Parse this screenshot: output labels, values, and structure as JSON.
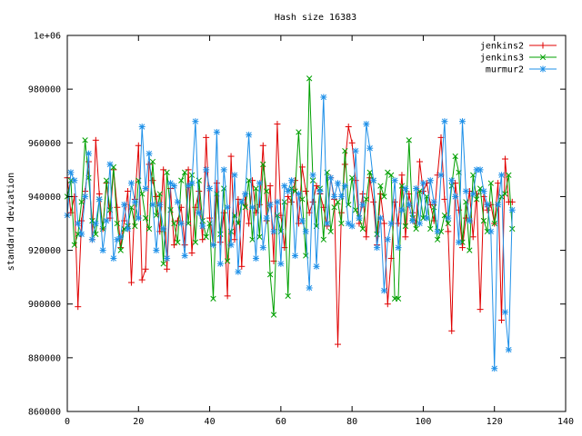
{
  "chart_data": {
    "type": "line",
    "title": "Hash size 16383",
    "xlabel": "",
    "ylabel": "standard deviation",
    "xlim": [
      0,
      140
    ],
    "ylim": [
      860000,
      1000000
    ],
    "x_ticks": [
      0,
      20,
      40,
      60,
      80,
      100,
      120,
      140
    ],
    "y_ticks": [
      860000,
      880000,
      900000,
      920000,
      940000,
      960000,
      980000,
      1000000
    ],
    "y_tick_labels": [
      "860000",
      "880000",
      "900000",
      "920000",
      "940000",
      "960000",
      "980000",
      "1e+06"
    ],
    "grid": false,
    "legend": "top-right",
    "x": [
      0,
      1,
      2,
      3,
      4,
      5,
      6,
      7,
      8,
      9,
      10,
      11,
      12,
      13,
      14,
      15,
      16,
      17,
      18,
      19,
      20,
      21,
      22,
      23,
      24,
      25,
      26,
      27,
      28,
      29,
      30,
      31,
      32,
      33,
      34,
      35,
      36,
      37,
      38,
      39,
      40,
      41,
      42,
      43,
      44,
      45,
      46,
      47,
      48,
      49,
      50,
      51,
      52,
      53,
      54,
      55,
      56,
      57,
      58,
      59,
      60,
      61,
      62,
      63,
      64,
      65,
      66,
      67,
      68,
      69,
      70,
      71,
      72,
      73,
      74,
      75,
      76,
      77,
      78,
      79,
      80,
      81,
      82,
      83,
      84,
      85,
      86,
      87,
      88,
      89,
      90,
      91,
      92,
      93,
      94,
      95,
      96,
      97,
      98,
      99,
      100,
      101,
      102,
      103,
      104,
      105,
      106,
      107,
      108,
      109,
      110,
      111,
      112,
      113,
      114,
      115,
      116,
      117,
      118,
      119,
      120,
      121,
      122,
      123,
      124,
      125
    ],
    "series": [
      {
        "name": "jenkins2",
        "color": "#e00000",
        "marker": "plus",
        "values": [
          947000,
          934000,
          940000,
          899000,
          931000,
          942000,
          953000,
          924000,
          961000,
          941000,
          928000,
          945000,
          932000,
          950000,
          936000,
          921000,
          931000,
          942000,
          908000,
          939000,
          959000,
          909000,
          913000,
          952000,
          946000,
          940000,
          927000,
          950000,
          913000,
          943000,
          922000,
          931000,
          936000,
          922000,
          950000,
          919000,
          936000,
          942000,
          924000,
          962000,
          932000,
          922000,
          945000,
          923000,
          934000,
          903000,
          955000,
          924000,
          939000,
          914000,
          941000,
          930000,
          946000,
          934000,
          937000,
          959000,
          931000,
          944000,
          916000,
          967000,
          933000,
          921000,
          940000,
          938000,
          946000,
          930000,
          951000,
          942000,
          934000,
          938000,
          944000,
          941000,
          936000,
          929000,
          947000,
          939000,
          885000,
          934000,
          952000,
          966000,
          960000,
          946000,
          930000,
          941000,
          925000,
          947000,
          938000,
          922000,
          941000,
          930000,
          900000,
          917000,
          938000,
          930000,
          948000,
          925000,
          941000,
          934000,
          930000,
          953000,
          942000,
          945000,
          937000,
          931000,
          948000,
          962000,
          939000,
          927000,
          890000,
          945000,
          935000,
          921000,
          932000,
          942000,
          925000,
          941000,
          898000,
          940000,
          935000,
          937000,
          930000,
          945000,
          894000,
          954000,
          938000,
          938000
        ]
      },
      {
        "name": "jenkins3",
        "color": "#00a000",
        "marker": "x",
        "values": [
          940000,
          946000,
          922000,
          926000,
          938000,
          961000,
          947000,
          931000,
          926000,
          939000,
          928000,
          946000,
          935000,
          951000,
          930000,
          920000,
          928000,
          929000,
          936000,
          929000,
          946000,
          941000,
          932000,
          928000,
          953000,
          933000,
          941000,
          915000,
          949000,
          935000,
          930000,
          923000,
          946000,
          949000,
          930000,
          948000,
          923000,
          946000,
          931000,
          925000,
          930000,
          902000,
          941000,
          926000,
          943000,
          916000,
          927000,
          933000,
          930000,
          938000,
          936000,
          946000,
          924000,
          943000,
          925000,
          952000,
          942000,
          911000,
          896000,
          933000,
          927000,
          938000,
          903000,
          943000,
          942000,
          964000,
          939000,
          918000,
          984000,
          946000,
          929000,
          943000,
          924000,
          949000,
          927000,
          936000,
          938000,
          930000,
          957000,
          937000,
          947000,
          935000,
          932000,
          928000,
          939000,
          949000,
          946000,
          926000,
          944000,
          940000,
          949000,
          948000,
          902000,
          902000,
          944000,
          929000,
          961000,
          932000,
          928000,
          942000,
          932000,
          940000,
          928000,
          936000,
          924000,
          927000,
          933000,
          930000,
          944000,
          955000,
          949000,
          923000,
          938000,
          920000,
          948000,
          939000,
          943000,
          931000,
          927000,
          945000,
          930000,
          937000,
          940000,
          941000,
          948000,
          928000
        ]
      },
      {
        "name": "murmur2",
        "color": "#1e90e8",
        "marker": "star",
        "values": [
          933000,
          949000,
          946000,
          930000,
          926000,
          940000,
          956000,
          924000,
          930000,
          939000,
          920000,
          931000,
          952000,
          917000,
          924000,
          925000,
          937000,
          928000,
          945000,
          938000,
          932000,
          966000,
          943000,
          956000,
          937000,
          920000,
          937000,
          928000,
          917000,
          945000,
          944000,
          938000,
          930000,
          918000,
          944000,
          945000,
          968000,
          934000,
          929000,
          950000,
          943000,
          922000,
          964000,
          915000,
          950000,
          936000,
          922000,
          948000,
          912000,
          938000,
          941000,
          963000,
          936000,
          917000,
          945000,
          921000,
          932000,
          937000,
          927000,
          938000,
          915000,
          944000,
          942000,
          946000,
          918000,
          941000,
          931000,
          927000,
          906000,
          948000,
          914000,
          942000,
          977000,
          930000,
          947000,
          940000,
          945000,
          940000,
          944000,
          930000,
          929000,
          957000,
          932000,
          937000,
          967000,
          958000,
          946000,
          921000,
          932000,
          905000,
          924000,
          930000,
          946000,
          921000,
          935000,
          943000,
          937000,
          931000,
          943000,
          930000,
          945000,
          932000,
          946000,
          938000,
          927000,
          948000,
          968000,
          932000,
          946000,
          940000,
          923000,
          968000,
          942000,
          931000,
          941000,
          950000,
          950000,
          942000,
          937000,
          927000,
          876000,
          937000,
          948000,
          897000,
          883000,
          935000
        ]
      }
    ]
  }
}
